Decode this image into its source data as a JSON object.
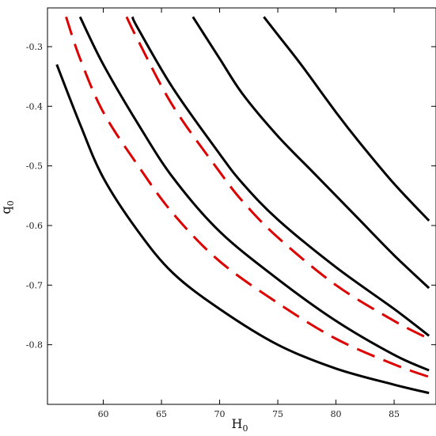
{
  "chart_data": {
    "type": "line",
    "xlabel": "H",
    "xlabel_sub": "0",
    "ylabel": "q",
    "ylabel_sub": "0",
    "xlim": [
      55.2,
      88.6
    ],
    "ylim": [
      -0.9,
      -0.235
    ],
    "x_ticks": [
      60,
      65,
      70,
      75,
      80,
      85
    ],
    "x_tick_labels": [
      "60",
      "65",
      "70",
      "75",
      "80",
      "85"
    ],
    "y_ticks": [
      -0.3,
      -0.4,
      -0.5,
      -0.6,
      -0.7,
      -0.8
    ],
    "y_tick_labels": [
      "-0.3",
      "-0.4",
      "-0.5",
      "-0.6",
      "-0.7",
      "-0.8"
    ],
    "grid": false,
    "colors": {
      "solid": "#000000",
      "dashed": "#dd0000"
    },
    "series": [
      {
        "style": "solid",
        "color": "#000000",
        "points": [
          [
            56,
            -0.33
          ],
          [
            58,
            -0.43
          ],
          [
            60,
            -0.52
          ],
          [
            63,
            -0.61
          ],
          [
            66,
            -0.68
          ],
          [
            70,
            -0.74
          ],
          [
            75,
            -0.8
          ],
          [
            80,
            -0.84
          ],
          [
            85,
            -0.867
          ],
          [
            88,
            -0.881
          ]
        ]
      },
      {
        "style": "dashed",
        "color": "#dd0000",
        "points": [
          [
            56.8,
            -0.25
          ],
          [
            58,
            -0.32
          ],
          [
            60,
            -0.41
          ],
          [
            63,
            -0.5
          ],
          [
            66,
            -0.58
          ],
          [
            70,
            -0.66
          ],
          [
            75,
            -0.73
          ],
          [
            80,
            -0.79
          ],
          [
            85,
            -0.833
          ],
          [
            88,
            -0.854
          ]
        ]
      },
      {
        "style": "solid",
        "color": "#000000",
        "points": [
          [
            58,
            -0.25
          ],
          [
            60,
            -0.33
          ],
          [
            63,
            -0.43
          ],
          [
            66,
            -0.52
          ],
          [
            70,
            -0.61
          ],
          [
            75,
            -0.69
          ],
          [
            80,
            -0.76
          ],
          [
            85,
            -0.817
          ],
          [
            88,
            -0.843
          ]
        ]
      },
      {
        "style": "dashed",
        "color": "#dd0000",
        "points": [
          [
            62,
            -0.25
          ],
          [
            63,
            -0.29
          ],
          [
            66,
            -0.4
          ],
          [
            70,
            -0.51
          ],
          [
            72,
            -0.56
          ],
          [
            75,
            -0.62
          ],
          [
            80,
            -0.7
          ],
          [
            85,
            -0.76
          ],
          [
            88,
            -0.79
          ]
        ]
      },
      {
        "style": "solid",
        "color": "#000000",
        "points": [
          [
            62.5,
            -0.25
          ],
          [
            63,
            -0.27
          ],
          [
            66,
            -0.37
          ],
          [
            70,
            -0.48
          ],
          [
            72,
            -0.53
          ],
          [
            75,
            -0.59
          ],
          [
            80,
            -0.67
          ],
          [
            85,
            -0.74
          ],
          [
            88,
            -0.785
          ]
        ]
      },
      {
        "style": "solid",
        "color": "#000000",
        "points": [
          [
            67.7,
            -0.25
          ],
          [
            70,
            -0.32
          ],
          [
            72,
            -0.38
          ],
          [
            75,
            -0.45
          ],
          [
            78,
            -0.51
          ],
          [
            80,
            -0.55
          ],
          [
            82,
            -0.59
          ],
          [
            85,
            -0.65
          ],
          [
            88,
            -0.705
          ]
        ]
      },
      {
        "style": "solid",
        "color": "#000000",
        "points": [
          [
            73.8,
            -0.25
          ],
          [
            75,
            -0.28
          ],
          [
            77,
            -0.33
          ],
          [
            80,
            -0.41
          ],
          [
            82,
            -0.46
          ],
          [
            85,
            -0.53
          ],
          [
            88,
            -0.592
          ]
        ]
      }
    ]
  }
}
